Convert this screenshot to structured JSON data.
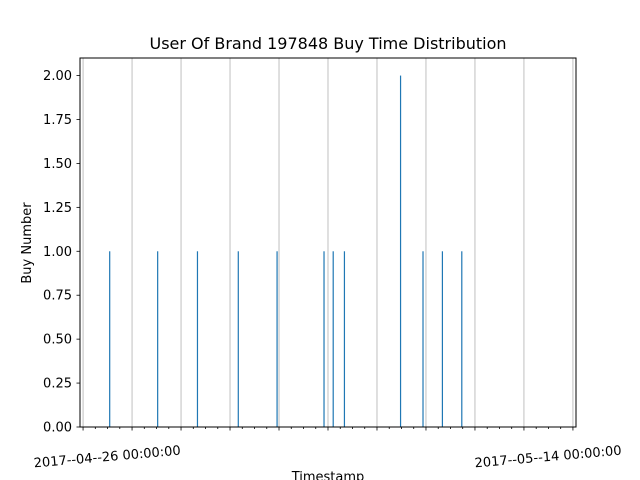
{
  "chart_data": {
    "type": "bar",
    "title": "User Of Brand 197848 Buy Time Distribution",
    "xlabel": "Timestamp",
    "ylabel": "Buy Number",
    "x_axis_type": "date",
    "xlim": [
      "2017-04-24 21:00",
      "2017-05-15 03:00"
    ],
    "ylim": [
      0,
      2.1
    ],
    "y_ticks": [
      0.0,
      0.25,
      0.5,
      0.75,
      1.0,
      1.25,
      1.5,
      1.75,
      2.0
    ],
    "y_tick_labels": [
      "0.00",
      "0.25",
      "0.50",
      "0.75",
      "1.00",
      "1.25",
      "1.50",
      "1.75",
      "2.00"
    ],
    "x_tick_labels": [
      {
        "value": "2017-04-26 00:00",
        "label": "2017--04--26 00:00:00"
      },
      {
        "value": "2017-05-14 00:00",
        "label": "2017--05--14 00:00:00"
      }
    ],
    "grid": "vertical",
    "bar_color": "#1f77b4",
    "series": [
      {
        "x": [
          "2017-04-26 02:00",
          "2017-04-28 01:00",
          "2017-04-29 16:00",
          "2017-05-01 08:00",
          "2017-05-02 22:00",
          "2017-05-04 20:00",
          "2017-05-05 05:00",
          "2017-05-05 16:00",
          "2017-05-07 23:00",
          "2017-05-08 21:00",
          "2017-05-09 16:00",
          "2017-05-10 11:00"
        ],
        "values": [
          1,
          1,
          1,
          1,
          1,
          1,
          1,
          1,
          2,
          1,
          1,
          1
        ]
      }
    ]
  }
}
